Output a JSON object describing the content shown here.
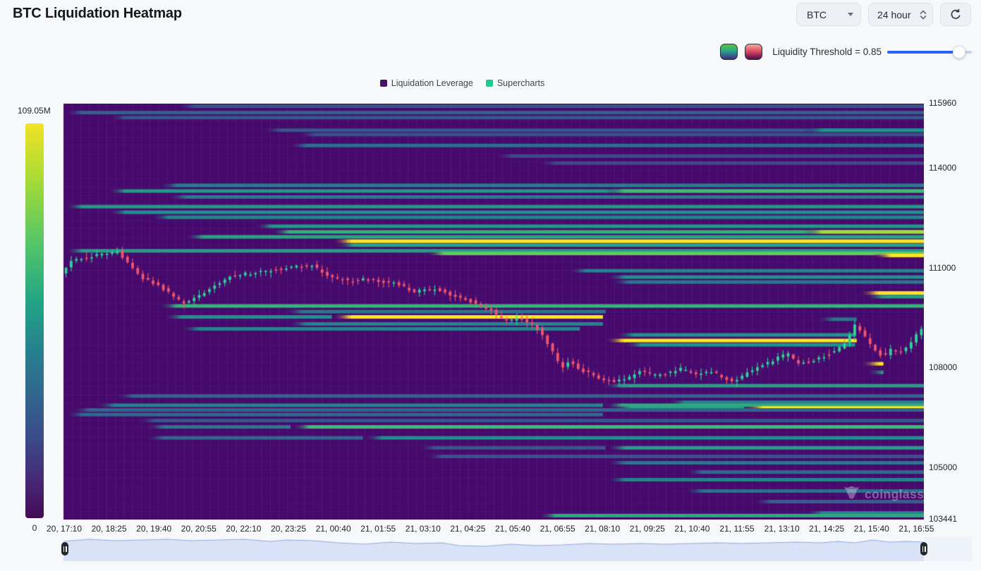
{
  "page": {
    "title": "BTC Liquidation Heatmap",
    "watermark": "coinglass"
  },
  "controls": {
    "symbol_select": "BTC",
    "timeframe_select": "24 hour"
  },
  "threshold": {
    "label": "Liquidity Threshold = 0.85",
    "value": 0.85,
    "accent": "#2962ff"
  },
  "legend": {
    "items": [
      {
        "label": "Liquidation Leverage",
        "color": "#461168"
      },
      {
        "label": "Supercharts",
        "color": "#1ecb8c"
      }
    ]
  },
  "colorbar": {
    "max_label": "109.05M",
    "min_label": "0"
  },
  "chart_data": {
    "type": "heatmap",
    "title": "BTC Liquidation Heatmap",
    "y_axis": {
      "min": 103441,
      "max": 115960,
      "ticks": [
        115960,
        114000,
        111000,
        108000,
        105000,
        103441
      ]
    },
    "x_labels": [
      "20, 17:10",
      "20, 18:25",
      "20, 19:40",
      "20, 20:55",
      "20, 22:10",
      "20, 23:25",
      "21, 00:40",
      "21, 01:55",
      "21, 03:10",
      "21, 04:25",
      "21, 05:40",
      "21, 06:55",
      "21, 08:10",
      "21, 09:25",
      "21, 10:40",
      "21, 11:55",
      "21, 13:10",
      "21, 14:25",
      "21, 15:40",
      "21, 16:55"
    ],
    "colorbar": {
      "max": "109.05M",
      "min": "0"
    },
    "background_color": "#46096c",
    "candle_up_color": "#2fd397",
    "candle_down_color": "#f2566b",
    "bands_format": [
      "price_level",
      "start_fraction",
      "end_fraction",
      "intensity_0to1"
    ],
    "bands": [
      [
        115880,
        0.13,
        1,
        0.28
      ],
      [
        115690,
        0,
        1,
        0.36
      ],
      [
        115540,
        0.05,
        1,
        0.3
      ],
      [
        115160,
        0.23,
        1,
        0.3
      ],
      [
        115160,
        0.86,
        1,
        0.55
      ],
      [
        115030,
        0.27,
        1,
        0.26
      ],
      [
        114700,
        0.26,
        1,
        0.42
      ],
      [
        114380,
        0.5,
        1,
        0.24
      ],
      [
        114170,
        0.55,
        1,
        0.22
      ],
      [
        113500,
        0.11,
        1,
        0.48
      ],
      [
        113330,
        0.05,
        1,
        0.58
      ],
      [
        113330,
        0.63,
        1,
        0.72
      ],
      [
        113150,
        0.12,
        1,
        0.46
      ],
      [
        112860,
        0,
        1,
        0.58
      ],
      [
        112690,
        0.05,
        1,
        0.55
      ],
      [
        112540,
        0.1,
        1,
        0.5
      ],
      [
        112270,
        0.22,
        1,
        0.58
      ],
      [
        112100,
        0.24,
        1,
        0.68
      ],
      [
        112100,
        0.86,
        1,
        0.88
      ],
      [
        111950,
        0.14,
        1,
        0.62
      ],
      [
        111820,
        0.312,
        1,
        1
      ],
      [
        111700,
        0.315,
        1,
        0.62
      ],
      [
        111530,
        0,
        1,
        0.6
      ],
      [
        111450,
        0.42,
        1,
        0.78
      ],
      [
        111390,
        0.94,
        1,
        1
      ],
      [
        110930,
        0.585,
        1,
        0.5
      ],
      [
        110740,
        0.63,
        1,
        0.55
      ],
      [
        110590,
        0.635,
        1,
        0.45
      ],
      [
        110260,
        0.925,
        1,
        1
      ],
      [
        110150,
        0.93,
        1,
        0.6
      ],
      [
        109870,
        0.11,
        1,
        0.7
      ],
      [
        109700,
        0.255,
        0.63,
        0.45
      ],
      [
        109540,
        0.115,
        0.312,
        0.55
      ],
      [
        109540,
        0.312,
        0.627,
        1
      ],
      [
        109470,
        0.873,
        0.922,
        0.45
      ],
      [
        109330,
        0.26,
        0.627,
        0.5
      ],
      [
        109180,
        0.135,
        0.6,
        0.5
      ],
      [
        109000,
        0.64,
        0.92,
        0.55
      ],
      [
        108830,
        0.629,
        0.922,
        1
      ],
      [
        108700,
        0.65,
        0.92,
        0.55
      ],
      [
        108130,
        0.926,
        0.953,
        1
      ],
      [
        107870,
        0.932,
        0.953,
        0.65
      ],
      [
        107470,
        0.627,
        1,
        0.6
      ],
      [
        107160,
        0.059,
        1,
        0.38
      ],
      [
        106970,
        0.7,
        1,
        0.5
      ],
      [
        106880,
        0.037,
        0.627,
        0.5
      ],
      [
        106880,
        0.627,
        1,
        0.65
      ],
      [
        106800,
        0.637,
        0.791,
        0.62
      ],
      [
        106800,
        0.791,
        1,
        1
      ],
      [
        106740,
        0.008,
        1,
        0.38
      ],
      [
        106600,
        0,
        0.627,
        0.4
      ],
      [
        106420,
        0.084,
        1,
        0.3
      ],
      [
        106230,
        0.094,
        0.264,
        0.45
      ],
      [
        106230,
        0.264,
        1,
        0.72
      ],
      [
        105900,
        0.094,
        0.348,
        0.4
      ],
      [
        105900,
        0.348,
        1,
        0.55
      ],
      [
        105600,
        0.41,
        0.63,
        0.32
      ],
      [
        105600,
        0.63,
        1,
        0.6
      ],
      [
        105340,
        0.418,
        1,
        0.28
      ],
      [
        105150,
        0.63,
        1,
        0.45
      ],
      [
        104870,
        0.72,
        1,
        0.4
      ],
      [
        104640,
        0.63,
        1,
        0.5
      ],
      [
        104300,
        0.72,
        1,
        0.42
      ],
      [
        103980,
        0.8,
        1,
        0.35
      ],
      [
        103640,
        0.86,
        1,
        0.5
      ],
      [
        103560,
        0.55,
        1,
        0.65
      ]
    ],
    "price_path_format": [
      "time_fraction",
      "price"
    ],
    "price_path": [
      [
        0,
        110890
      ],
      [
        0.012,
        111210
      ],
      [
        0.037,
        111380
      ],
      [
        0.066,
        111530
      ],
      [
        0.09,
        110780
      ],
      [
        0.115,
        110460
      ],
      [
        0.143,
        109930
      ],
      [
        0.164,
        110250
      ],
      [
        0.197,
        110780
      ],
      [
        0.23,
        110890
      ],
      [
        0.27,
        111040
      ],
      [
        0.291,
        111100
      ],
      [
        0.311,
        110780
      ],
      [
        0.336,
        110610
      ],
      [
        0.352,
        110670
      ],
      [
        0.385,
        110570
      ],
      [
        0.41,
        110310
      ],
      [
        0.434,
        110400
      ],
      [
        0.459,
        110150
      ],
      [
        0.484,
        109930
      ],
      [
        0.5,
        109720
      ],
      [
        0.516,
        109400
      ],
      [
        0.533,
        109510
      ],
      [
        0.549,
        109300
      ],
      [
        0.561,
        108980
      ],
      [
        0.574,
        108340
      ],
      [
        0.582,
        108030
      ],
      [
        0.59,
        108200
      ],
      [
        0.607,
        107920
      ],
      [
        0.623,
        107710
      ],
      [
        0.639,
        107600
      ],
      [
        0.656,
        107640
      ],
      [
        0.672,
        107920
      ],
      [
        0.689,
        107770
      ],
      [
        0.705,
        107850
      ],
      [
        0.721,
        107980
      ],
      [
        0.738,
        107810
      ],
      [
        0.754,
        107920
      ],
      [
        0.77,
        107700
      ],
      [
        0.783,
        107600
      ],
      [
        0.795,
        107810
      ],
      [
        0.811,
        108030
      ],
      [
        0.828,
        108240
      ],
      [
        0.844,
        108450
      ],
      [
        0.857,
        108130
      ],
      [
        0.869,
        108200
      ],
      [
        0.885,
        108340
      ],
      [
        0.902,
        108550
      ],
      [
        0.914,
        108870
      ],
      [
        0.923,
        109290
      ],
      [
        0.933,
        108980
      ],
      [
        0.943,
        108660
      ],
      [
        0.955,
        108340
      ],
      [
        0.963,
        108550
      ],
      [
        0.975,
        108450
      ],
      [
        0.988,
        108770
      ],
      [
        1,
        109190
      ]
    ],
    "navigator_profile_format": [
      "time_fraction",
      "depth_px_from_top"
    ],
    "navigator_profile": [
      [
        0,
        6
      ],
      [
        0.03,
        3
      ],
      [
        0.06,
        5
      ],
      [
        0.09,
        4
      ],
      [
        0.12,
        3
      ],
      [
        0.15,
        5
      ],
      [
        0.18,
        4
      ],
      [
        0.21,
        3
      ],
      [
        0.24,
        6
      ],
      [
        0.26,
        4
      ],
      [
        0.29,
        5
      ],
      [
        0.32,
        8
      ],
      [
        0.35,
        10
      ],
      [
        0.38,
        7
      ],
      [
        0.41,
        9
      ],
      [
        0.44,
        8
      ],
      [
        0.46,
        12
      ],
      [
        0.49,
        13
      ],
      [
        0.52,
        10
      ],
      [
        0.55,
        12
      ],
      [
        0.58,
        11
      ],
      [
        0.61,
        9
      ],
      [
        0.64,
        10
      ],
      [
        0.67,
        9
      ],
      [
        0.7,
        10
      ],
      [
        0.73,
        9
      ],
      [
        0.76,
        8
      ],
      [
        0.79,
        9
      ],
      [
        0.82,
        8
      ],
      [
        0.85,
        7
      ],
      [
        0.88,
        8
      ],
      [
        0.9,
        6
      ],
      [
        0.92,
        8
      ],
      [
        0.94,
        4
      ],
      [
        0.96,
        7
      ],
      [
        0.98,
        6
      ],
      [
        1,
        7
      ]
    ]
  }
}
